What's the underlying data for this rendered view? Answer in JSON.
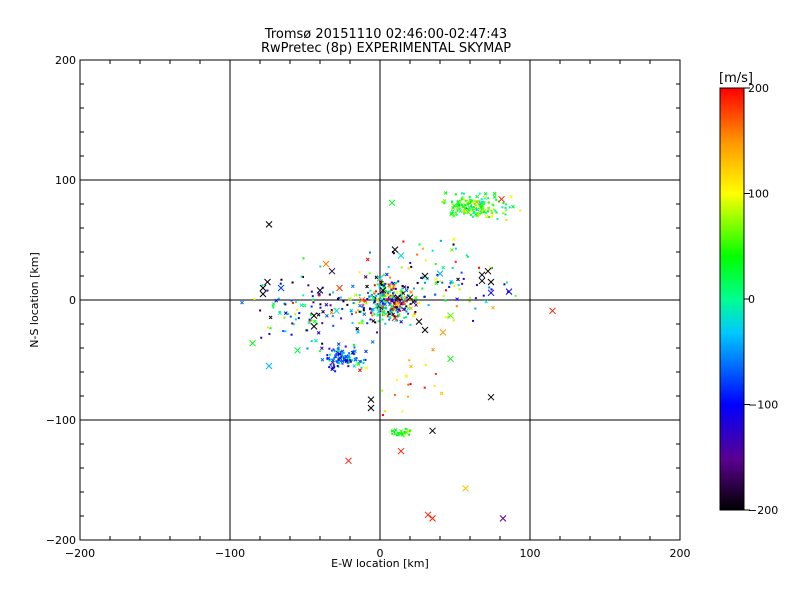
{
  "chart_data": {
    "type": "scatter",
    "title_line1": "Tromsø 20151110 02:46:00-02:47:43",
    "title_line2": "RwPretec (8p) EXPERIMENTAL SKYMAP",
    "xlabel": "E-W location [km]",
    "ylabel": "N-S location [km]",
    "xlim": [
      -200,
      200
    ],
    "ylim": [
      -200,
      200
    ],
    "xticks": [
      "-200",
      "-100",
      "0",
      "100",
      "200"
    ],
    "yticks": [
      "-200",
      "-100",
      "0",
      "100",
      "200"
    ],
    "grid": true,
    "colorbar": {
      "unit": "[m/s]",
      "range": [
        -200,
        200
      ],
      "ticks": [
        "200",
        "100",
        "0",
        "-100",
        "-200"
      ],
      "colormap": "rainbow (black-purple-blue-cyan-green-yellow-red)"
    },
    "clusters": [
      {
        "cx": 5,
        "cy": 0,
        "sx": 9,
        "sy": 9,
        "n": 260,
        "v": 0,
        "vs": 150
      },
      {
        "cx": 62,
        "cy": 78,
        "sx": 10,
        "sy": 5,
        "n": 150,
        "v": 40,
        "vs": 35
      },
      {
        "cx": -25,
        "cy": -47,
        "sx": 7,
        "sy": 5,
        "n": 110,
        "v": -60,
        "vs": 50
      },
      {
        "cx": 13,
        "cy": -110,
        "sx": 5,
        "sy": 2,
        "n": 28,
        "v": 50,
        "vs": 20
      },
      {
        "cx": -45,
        "cy": -10,
        "sx": 22,
        "sy": 14,
        "n": 110,
        "v": -50,
        "vs": 110
      },
      {
        "cx": 40,
        "cy": 15,
        "sx": 22,
        "sy": 18,
        "n": 90,
        "v": 0,
        "vs": 110
      },
      {
        "cx": 20,
        "cy": -70,
        "sx": 15,
        "sy": 15,
        "n": 20,
        "v": 150,
        "vs": 50
      }
    ],
    "crosses": [
      {
        "x": -74,
        "y": 63,
        "v": -200
      },
      {
        "x": -78,
        "y": 10,
        "v": -200
      },
      {
        "x": -75,
        "y": 15,
        "v": -200
      },
      {
        "x": -78,
        "y": 5,
        "v": -200
      },
      {
        "x": -44,
        "y": -13,
        "v": -200
      },
      {
        "x": -44,
        "y": -22,
        "v": -200
      },
      {
        "x": -40,
        "y": 8,
        "v": -200
      },
      {
        "x": -32,
        "y": 24,
        "v": -180
      },
      {
        "x": -36,
        "y": 30,
        "v": 160
      },
      {
        "x": -27,
        "y": 10,
        "v": 180
      },
      {
        "x": -29,
        "y": -9,
        "v": -20
      },
      {
        "x": -55,
        "y": -42,
        "v": 20
      },
      {
        "x": -74,
        "y": -55,
        "v": -40
      },
      {
        "x": -85,
        "y": -36,
        "v": 40
      },
      {
        "x": -66,
        "y": 10,
        "v": -80
      },
      {
        "x": 8,
        "y": 81,
        "v": 30
      },
      {
        "x": 10,
        "y": 42,
        "v": -200
      },
      {
        "x": 14,
        "y": 37,
        "v": -20
      },
      {
        "x": 40,
        "y": 22,
        "v": -40
      },
      {
        "x": 68,
        "y": 21,
        "v": -200
      },
      {
        "x": 72,
        "y": 24,
        "v": -200
      },
      {
        "x": 74,
        "y": 15,
        "v": -200
      },
      {
        "x": 68,
        "y": 16,
        "v": -200
      },
      {
        "x": 74,
        "y": 6,
        "v": -110
      },
      {
        "x": 86,
        "y": 7,
        "v": -100
      },
      {
        "x": 81,
        "y": 84,
        "v": 190
      },
      {
        "x": 115,
        "y": -9,
        "v": 190
      },
      {
        "x": 47,
        "y": -13,
        "v": 60
      },
      {
        "x": 47,
        "y": -49,
        "v": 40
      },
      {
        "x": 42,
        "y": -27,
        "v": 150
      },
      {
        "x": 30,
        "y": -25,
        "v": -200
      },
      {
        "x": 26,
        "y": -18,
        "v": -200
      },
      {
        "x": 30,
        "y": 20,
        "v": -200
      },
      {
        "x": 74,
        "y": -81,
        "v": -200
      },
      {
        "x": -6,
        "y": -83,
        "v": -200
      },
      {
        "x": -6,
        "y": -90,
        "v": -200
      },
      {
        "x": 35,
        "y": -109,
        "v": -200
      },
      {
        "x": 14,
        "y": -126,
        "v": 190
      },
      {
        "x": -21,
        "y": -134,
        "v": 190
      },
      {
        "x": 57,
        "y": -157,
        "v": 130
      },
      {
        "x": 32,
        "y": -179,
        "v": 190
      },
      {
        "x": 35,
        "y": -182,
        "v": 190
      },
      {
        "x": 82,
        "y": -182,
        "v": -150
      },
      {
        "x": 2,
        "y": 8,
        "v": -200
      },
      {
        "x": 12,
        "y": 2,
        "v": -200
      },
      {
        "x": 0,
        "y": 18,
        "v": -30
      },
      {
        "x": -12,
        "y": 0,
        "v": 160
      },
      {
        "x": 10,
        "y": -15,
        "v": 190
      },
      {
        "x": 20,
        "y": 2,
        "v": -200
      },
      {
        "x": -2,
        "y": -5,
        "v": -10
      }
    ]
  }
}
